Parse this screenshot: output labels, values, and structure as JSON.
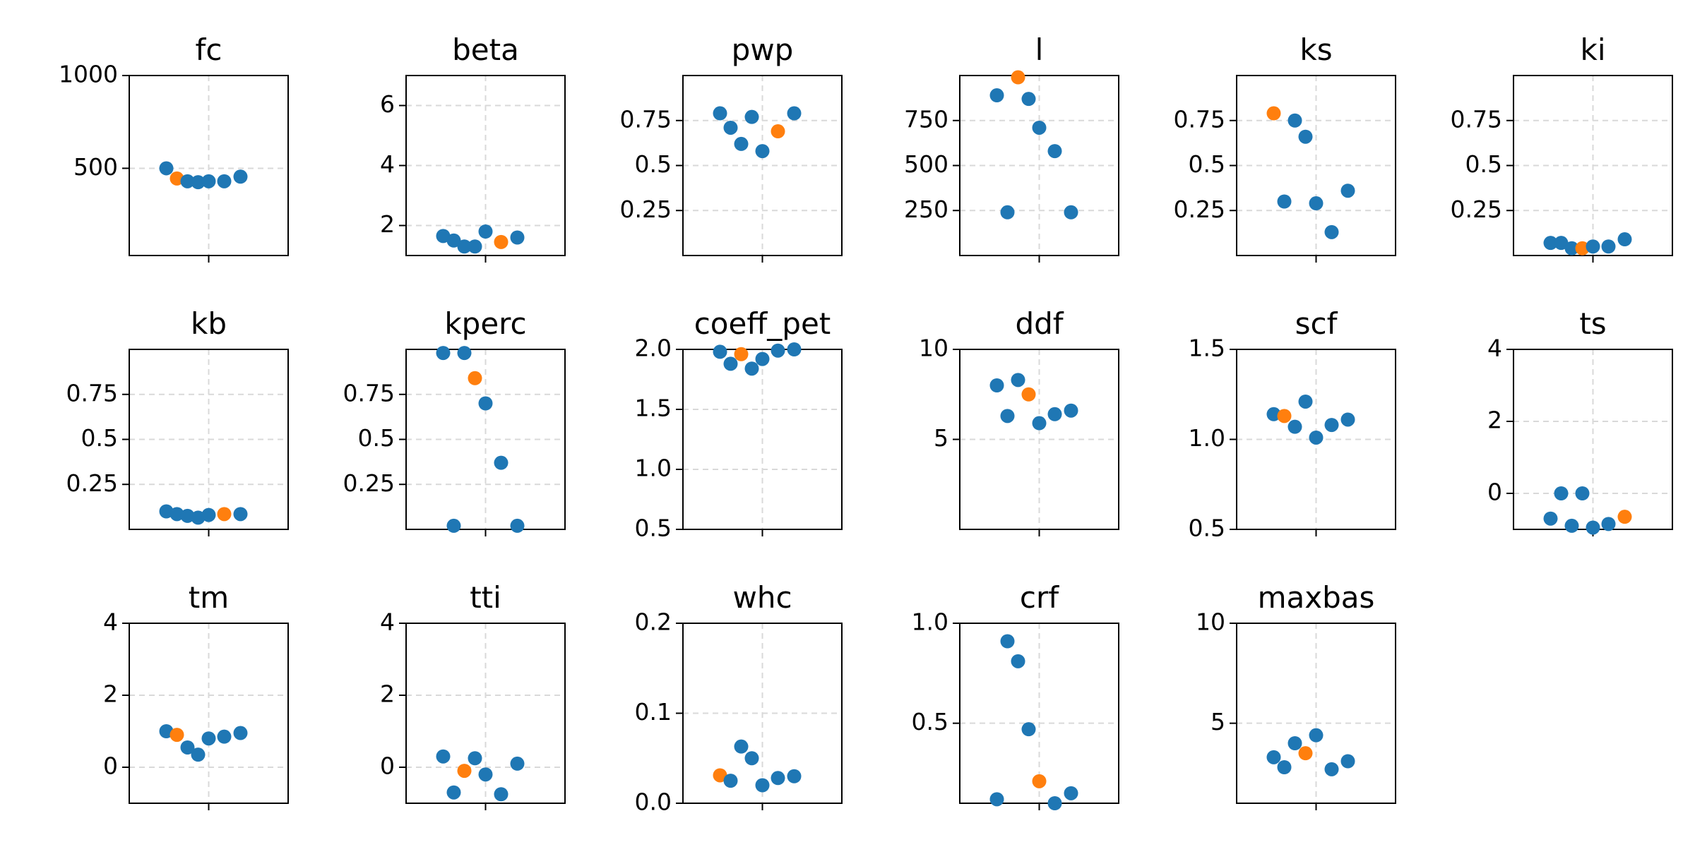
{
  "colors": {
    "primary": "#1f77b4",
    "highlight": "#ff7f0e",
    "grid": "#d9d9d9",
    "axis": "#000000"
  },
  "chart_data": [
    {
      "type": "scatter",
      "title": "fc",
      "ylim": [
        30,
        1000
      ],
      "yticks": [
        500,
        1000
      ],
      "points": [
        {
          "y": 500
        },
        {
          "y": 445,
          "highlight": true
        },
        {
          "y": 430
        },
        {
          "y": 425
        },
        {
          "y": 430
        },
        {
          "y": 430
        },
        {
          "y": 455
        }
      ]
    },
    {
      "type": "scatter",
      "title": "beta",
      "ylim": [
        1,
        7
      ],
      "yticks": [
        2,
        4,
        6
      ],
      "points": [
        {
          "y": 1.65
        },
        {
          "y": 1.5
        },
        {
          "y": 1.3
        },
        {
          "y": 1.3
        },
        {
          "y": 1.8
        },
        {
          "y": 1.45,
          "highlight": true
        },
        {
          "y": 1.6
        }
      ]
    },
    {
      "type": "scatter",
      "title": "pwp",
      "ylim": [
        0,
        1
      ],
      "yticks": [
        0.25,
        0.5,
        0.75
      ],
      "points": [
        {
          "y": 0.79
        },
        {
          "y": 0.71
        },
        {
          "y": 0.62
        },
        {
          "y": 0.77
        },
        {
          "y": 0.58
        },
        {
          "y": 0.69,
          "highlight": true
        },
        {
          "y": 0.79
        }
      ]
    },
    {
      "type": "scatter",
      "title": "l",
      "ylim": [
        0,
        1000
      ],
      "yticks": [
        250,
        500,
        750
      ],
      "points": [
        {
          "y": 890
        },
        {
          "y": 240
        },
        {
          "y": 990,
          "highlight": true
        },
        {
          "y": 870
        },
        {
          "y": 710
        },
        {
          "y": 580
        },
        {
          "y": 240
        }
      ]
    },
    {
      "type": "scatter",
      "title": "ks",
      "ylim": [
        0,
        1
      ],
      "yticks": [
        0.25,
        0.5,
        0.75
      ],
      "points": [
        {
          "y": 0.79,
          "highlight": true
        },
        {
          "y": 0.3
        },
        {
          "y": 0.75
        },
        {
          "y": 0.66
        },
        {
          "y": 0.29
        },
        {
          "y": 0.13
        },
        {
          "y": 0.36
        }
      ]
    },
    {
      "type": "scatter",
      "title": "ki",
      "ylim": [
        0,
        1
      ],
      "yticks": [
        0.25,
        0.5,
        0.75
      ],
      "points": [
        {
          "y": 0.07
        },
        {
          "y": 0.07
        },
        {
          "y": 0.04
        },
        {
          "y": 0.04,
          "highlight": true
        },
        {
          "y": 0.05
        },
        {
          "y": 0.05
        },
        {
          "y": 0.09
        }
      ]
    },
    {
      "type": "scatter",
      "title": "kb",
      "ylim": [
        0,
        1
      ],
      "yticks": [
        0.25,
        0.5,
        0.75
      ],
      "points": [
        {
          "y": 0.1
        },
        {
          "y": 0.085
        },
        {
          "y": 0.075
        },
        {
          "y": 0.065
        },
        {
          "y": 0.08
        },
        {
          "y": 0.085,
          "highlight": true
        },
        {
          "y": 0.085
        }
      ]
    },
    {
      "type": "scatter",
      "title": "kperc",
      "ylim": [
        0,
        1
      ],
      "yticks": [
        0.25,
        0.5,
        0.75
      ],
      "points": [
        {
          "y": 0.98
        },
        {
          "y": 0.02
        },
        {
          "y": 0.98
        },
        {
          "y": 0.84,
          "highlight": true
        },
        {
          "y": 0.7
        },
        {
          "y": 0.37
        },
        {
          "y": 0.02
        }
      ]
    },
    {
      "type": "scatter",
      "title": "coeff_pet",
      "ylim": [
        0.5,
        2
      ],
      "yticks": [
        0.5,
        1.0,
        1.5,
        2.0
      ],
      "points": [
        {
          "y": 1.98
        },
        {
          "y": 1.88
        },
        {
          "y": 1.96,
          "highlight": true
        },
        {
          "y": 1.84
        },
        {
          "y": 1.92
        },
        {
          "y": 1.99
        },
        {
          "y": 2.0
        }
      ]
    },
    {
      "type": "scatter",
      "title": "ddf",
      "ylim": [
        0,
        10
      ],
      "yticks": [
        5,
        10
      ],
      "points": [
        {
          "y": 8.0
        },
        {
          "y": 6.3
        },
        {
          "y": 8.3
        },
        {
          "y": 7.5,
          "highlight": true
        },
        {
          "y": 5.9
        },
        {
          "y": 6.4
        },
        {
          "y": 6.6
        }
      ]
    },
    {
      "type": "scatter",
      "title": "scf",
      "ylim": [
        0.5,
        1.5
      ],
      "yticks": [
        0.5,
        1.0,
        1.5
      ],
      "points": [
        {
          "y": 1.14
        },
        {
          "y": 1.13,
          "highlight": true
        },
        {
          "y": 1.07
        },
        {
          "y": 1.21
        },
        {
          "y": 1.01
        },
        {
          "y": 1.08
        },
        {
          "y": 1.11
        }
      ]
    },
    {
      "type": "scatter",
      "title": "ts",
      "ylim": [
        -1,
        4
      ],
      "yticks": [
        0,
        2,
        4
      ],
      "points": [
        {
          "y": -0.7
        },
        {
          "y": 0.0
        },
        {
          "y": -0.9
        },
        {
          "y": 0.0
        },
        {
          "y": -0.95
        },
        {
          "y": -0.85
        },
        {
          "y": -0.65,
          "highlight": true
        }
      ]
    },
    {
      "type": "scatter",
      "title": "tm",
      "ylim": [
        -1,
        4
      ],
      "yticks": [
        0,
        2,
        4
      ],
      "points": [
        {
          "y": 1.0
        },
        {
          "y": 0.9,
          "highlight": true
        },
        {
          "y": 0.55
        },
        {
          "y": 0.35
        },
        {
          "y": 0.8
        },
        {
          "y": 0.85
        },
        {
          "y": 0.95
        }
      ]
    },
    {
      "type": "scatter",
      "title": "tti",
      "ylim": [
        -1,
        4
      ],
      "yticks": [
        0,
        2,
        4
      ],
      "points": [
        {
          "y": 0.3
        },
        {
          "y": -0.7
        },
        {
          "y": -0.1,
          "highlight": true
        },
        {
          "y": 0.25
        },
        {
          "y": -0.2
        },
        {
          "y": -0.75
        },
        {
          "y": 0.1
        }
      ]
    },
    {
      "type": "scatter",
      "title": "whc",
      "ylim": [
        0,
        0.2
      ],
      "yticks": [
        0.0,
        0.1,
        0.2
      ],
      "points": [
        {
          "y": 0.031,
          "highlight": true
        },
        {
          "y": 0.025
        },
        {
          "y": 0.063
        },
        {
          "y": 0.05
        },
        {
          "y": 0.02
        },
        {
          "y": 0.028
        },
        {
          "y": 0.03
        }
      ]
    },
    {
      "type": "scatter",
      "title": "crf",
      "ylim": [
        0.1,
        1
      ],
      "yticks": [
        0.5,
        1.0
      ],
      "points": [
        {
          "y": 0.12
        },
        {
          "y": 0.91
        },
        {
          "y": 0.81
        },
        {
          "y": 0.47
        },
        {
          "y": 0.21,
          "highlight": true
        },
        {
          "y": 0.1
        },
        {
          "y": 0.15
        }
      ]
    },
    {
      "type": "scatter",
      "title": "maxbas",
      "ylim": [
        1,
        10
      ],
      "yticks": [
        5,
        10
      ],
      "points": [
        {
          "y": 3.3
        },
        {
          "y": 2.8
        },
        {
          "y": 4.0
        },
        {
          "y": 3.5,
          "highlight": true
        },
        {
          "y": 4.4
        },
        {
          "y": 2.7
        },
        {
          "y": 3.1
        }
      ]
    }
  ]
}
